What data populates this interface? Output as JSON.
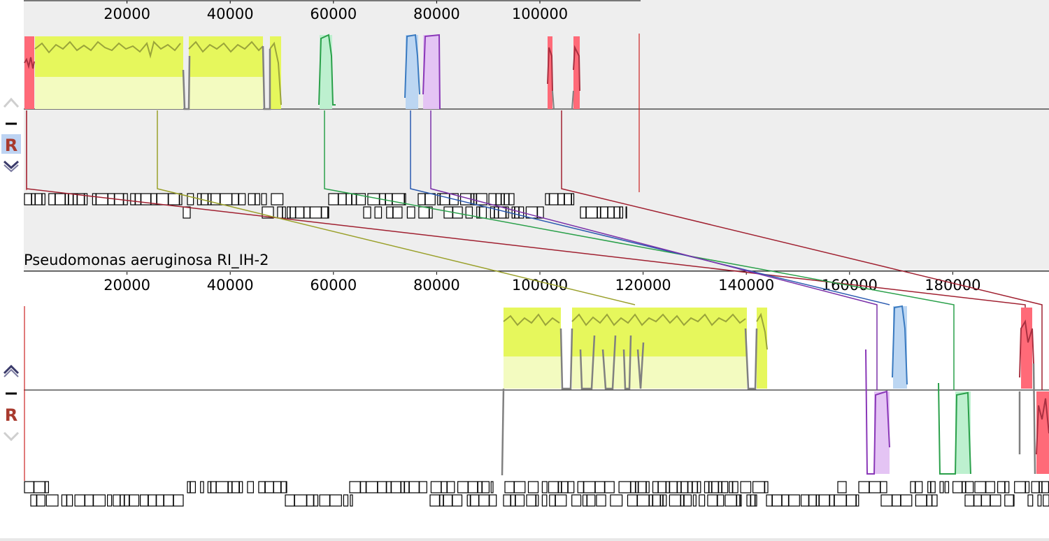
{
  "colors": {
    "panel_top_bg": "#eeeeee",
    "panel_bottom_bg": "#ffffff",
    "sidebar_bg": "#ffffff",
    "lcb_yellow": "#e6f75c",
    "lcb_yellow_trace": "#9aa43a",
    "lcb_red": "#ff5a6a",
    "lcb_red_trace": "#b03a4a",
    "lcb_green": "#3cbf6a",
    "lcb_blue": "#5b9bd5",
    "lcb_purple": "#a048c8",
    "gap": "#808080",
    "connector_olive": "#9aa02a",
    "connector_green": "#2aa04a",
    "connector_blue": "#2a5ab0",
    "connector_purple": "#7a30a8",
    "connector_darkred": "#a02030",
    "accent_red": "#cc2222"
  },
  "genomes": [
    {
      "id": "top",
      "name": "",
      "ticks": [
        "20000",
        "40000",
        "60000",
        "80000",
        "100000"
      ],
      "controls": {
        "up_icon": "chevron-up-icon",
        "minus_icon": "minus-icon",
        "r_label": "R",
        "down_icon": "chevron-down-icon",
        "r_selected": true
      }
    },
    {
      "id": "bottom",
      "name": "Pseudomonas aeruginosa RI_IH-2",
      "ticks": [
        "20000",
        "40000",
        "60000",
        "80000",
        "100000",
        "120000",
        "140000",
        "160000",
        "180000"
      ],
      "controls": {
        "up_icon": "chevron-up-icon",
        "minus_icon": "minus-icon",
        "r_label": "R",
        "down_icon": "chevron-down-icon",
        "r_selected": false
      }
    }
  ]
}
